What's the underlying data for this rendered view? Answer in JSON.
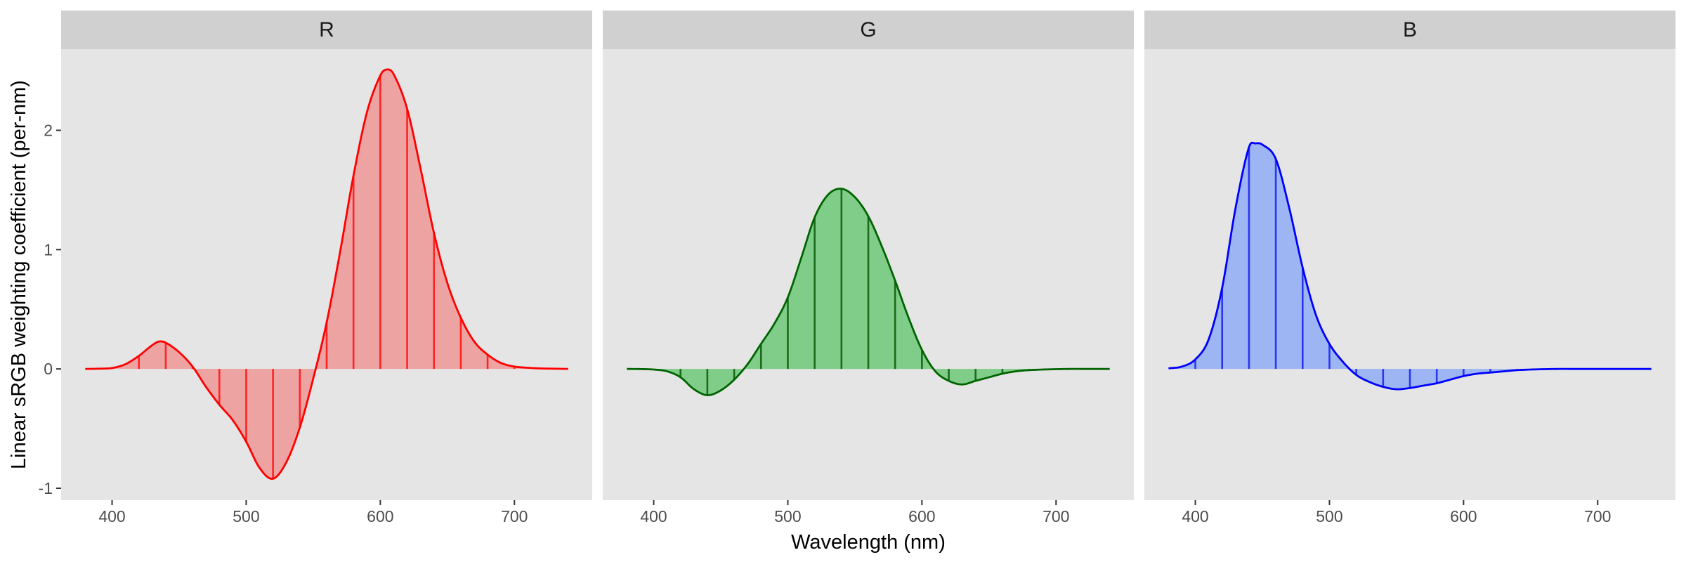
{
  "chart_data": {
    "type": "area",
    "title": "",
    "xlabel": "Wavelength (nm)",
    "ylabel": "Linear sRGB weighting coefficient (per-nm)",
    "xlim": [
      362,
      758
    ],
    "ylim": [
      -1.1,
      2.68
    ],
    "x_ticks": [
      400,
      500,
      600,
      700
    ],
    "y_ticks": [
      -1,
      0,
      1,
      2
    ],
    "grid": false,
    "hatch_wavelengths": [
      400,
      420,
      440,
      460,
      480,
      500,
      520,
      540,
      560,
      580,
      600,
      620,
      640,
      660,
      680,
      700,
      720
    ],
    "panels": [
      {
        "name": "R",
        "line_color": "#ff0000",
        "fill_color": "#eea3a3",
        "hatch_color": "#ff2424",
        "x": [
          380,
          390,
          400,
          410,
          420,
          430,
          435,
          440,
          450,
          460,
          470,
          480,
          490,
          500,
          510,
          520,
          530,
          540,
          550,
          560,
          570,
          580,
          590,
          600,
          605,
          610,
          620,
          630,
          640,
          650,
          660,
          670,
          680,
          690,
          700,
          710,
          720,
          730,
          740
        ],
        "y": [
          0,
          0.002,
          0.008,
          0.04,
          0.11,
          0.2,
          0.23,
          0.22,
          0.14,
          0.02,
          -0.15,
          -0.3,
          -0.43,
          -0.61,
          -0.83,
          -0.92,
          -0.78,
          -0.49,
          -0.08,
          0.39,
          0.98,
          1.62,
          2.15,
          2.46,
          2.51,
          2.47,
          2.18,
          1.68,
          1.14,
          0.72,
          0.43,
          0.23,
          0.12,
          0.05,
          0.02,
          0.01,
          0.004,
          0.002,
          0
        ]
      },
      {
        "name": "G",
        "line_color": "#006400",
        "fill_color": "#80cd89",
        "hatch_color": "#1a6b1a",
        "x": [
          380,
          390,
          400,
          410,
          420,
          430,
          440,
          450,
          460,
          470,
          480,
          490,
          500,
          510,
          520,
          530,
          540,
          550,
          560,
          570,
          580,
          590,
          600,
          610,
          620,
          630,
          640,
          650,
          660,
          670,
          680,
          690,
          700,
          710,
          720,
          730,
          740
        ],
        "y": [
          0,
          -0.001,
          -0.005,
          -0.02,
          -0.07,
          -0.17,
          -0.22,
          -0.18,
          -0.09,
          0.04,
          0.21,
          0.38,
          0.6,
          0.93,
          1.27,
          1.46,
          1.51,
          1.44,
          1.28,
          1.03,
          0.74,
          0.43,
          0.16,
          -0.02,
          -0.1,
          -0.13,
          -0.1,
          -0.07,
          -0.04,
          -0.02,
          -0.01,
          -0.005,
          -0.002,
          0,
          0,
          0,
          0
        ]
      },
      {
        "name": "B",
        "line_color": "#0000ff",
        "fill_color": "#9db5f2",
        "hatch_color": "#2a36f2",
        "x": [
          380,
          390,
          400,
          410,
          420,
          430,
          440,
          445,
          450,
          460,
          470,
          480,
          490,
          500,
          510,
          520,
          530,
          540,
          550,
          560,
          570,
          580,
          590,
          600,
          610,
          620,
          630,
          640,
          650,
          660,
          670,
          680,
          690,
          700,
          710,
          720,
          730,
          740
        ],
        "y": [
          0.005,
          0.02,
          0.08,
          0.25,
          0.68,
          1.35,
          1.86,
          1.89,
          1.88,
          1.76,
          1.35,
          0.85,
          0.45,
          0.21,
          0.06,
          -0.05,
          -0.11,
          -0.15,
          -0.17,
          -0.16,
          -0.14,
          -0.12,
          -0.09,
          -0.06,
          -0.04,
          -0.03,
          -0.02,
          -0.01,
          -0.005,
          -0.002,
          0,
          0,
          0,
          0,
          0,
          0,
          0,
          0
        ]
      }
    ]
  }
}
